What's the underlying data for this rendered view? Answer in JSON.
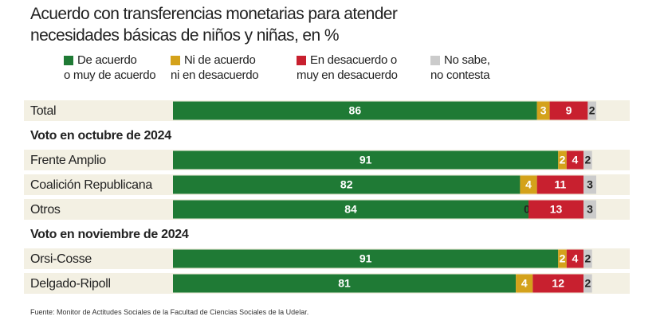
{
  "chart_data": {
    "type": "stacked-bar",
    "orientation": "horizontal",
    "title": "Acuerdo con transferencias monetarias para atender\nnecesidades básicas de niños y niñas, en %",
    "source": "Fuente: Monitor de Actitudes Sociales de la Facultad de Ciencias Sociales de la Udelar.",
    "categories": [
      "Total",
      "Voto en octubre de 2024",
      "Frente Amplio",
      "Coalición Republicana",
      "Otros",
      "Voto en noviembre de 2024",
      "Orsi-Cosse",
      "Delgado-Ripoll"
    ],
    "xlim": [
      0,
      100
    ],
    "series": [
      {
        "name": "De acuerdo\no muy de acuerdo",
        "color": "#1f7a35",
        "values": [
          86,
          null,
          91,
          82,
          84,
          null,
          91,
          81
        ]
      },
      {
        "name": "Ni de acuerdo\nni en desacuerdo",
        "color": "#d4a21b",
        "values": [
          3,
          null,
          2,
          4,
          0,
          null,
          2,
          4
        ]
      },
      {
        "name": "En desacuerdo o\nmuy en desacuerdo",
        "color": "#c8202f",
        "values": [
          9,
          null,
          4,
          11,
          13,
          null,
          4,
          12
        ]
      },
      {
        "name": "No sabe,\nno contesta",
        "color": "#cbcbcb",
        "values": [
          2,
          null,
          2,
          3,
          3,
          null,
          2,
          2
        ]
      }
    ]
  }
}
